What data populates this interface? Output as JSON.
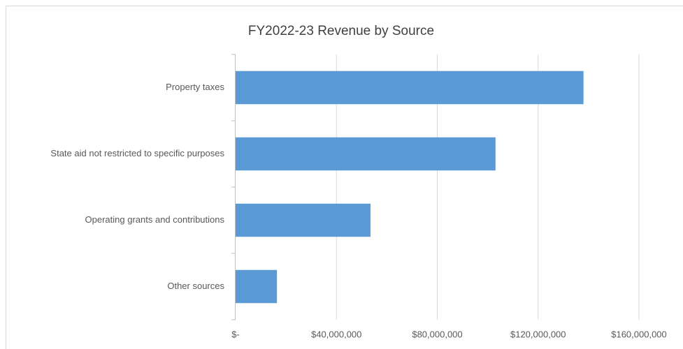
{
  "chart_data": {
    "type": "bar",
    "orientation": "horizontal",
    "title": "FY2022-23 Revenue by Source",
    "categories": [
      "Property taxes",
      "State aid not restricted to specific purposes",
      "Operating grants and contributions",
      "Other sources"
    ],
    "values": [
      138000000,
      103100000,
      53500000,
      16400000
    ],
    "color": "#5b9bd5",
    "xlim": [
      0,
      160000000
    ],
    "xticks": [
      {
        "value": 0,
        "label": "$-"
      },
      {
        "value": 40000000,
        "label": "$40,000,000"
      },
      {
        "value": 80000000,
        "label": "$80,000,000"
      },
      {
        "value": 120000000,
        "label": "$120,000,000"
      },
      {
        "value": 160000000,
        "label": "$160,000,000"
      }
    ],
    "grid": true
  }
}
